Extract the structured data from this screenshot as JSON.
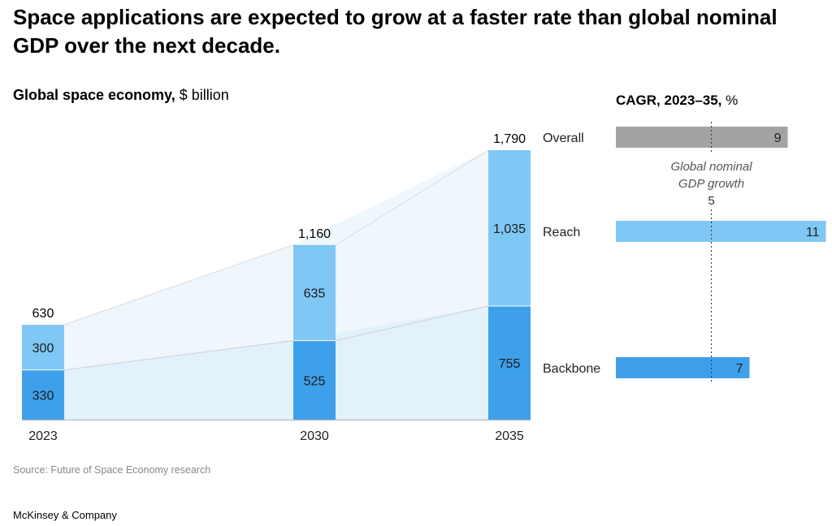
{
  "title": "Space applications are expected to grow at a faster rate than global nominal GDP over the next decade.",
  "chart_title_bold": "Global space economy,",
  "chart_title_unit": " $ billion",
  "cagr_title_bold": "CAGR, 2023–35,",
  "cagr_title_unit": " %",
  "source": "Source: Future of Space Economy research",
  "brand": "McKinsey & Company",
  "colors": {
    "backbone": "#3ea0eb",
    "reach": "#7fc7f4",
    "overall": "#a3a3a3",
    "area_backbone": "#e3f1fb",
    "area_reach": "#eff7fd"
  },
  "chart_data": [
    {
      "type": "bar",
      "stacked": true,
      "categories": [
        "2023",
        "2030",
        "2035"
      ],
      "series": [
        {
          "name": "Backbone",
          "values": [
            330,
            525,
            755
          ],
          "labels": [
            "330",
            "525",
            "755"
          ]
        },
        {
          "name": "Reach",
          "values": [
            300,
            635,
            1035
          ],
          "labels": [
            "300",
            "635",
            "1,035"
          ]
        }
      ],
      "totals": [
        630,
        1160,
        1790
      ],
      "total_labels": [
        "630",
        "1,160",
        "1,790"
      ],
      "title": "Global space economy, $ billion",
      "ylim": [
        0,
        1790
      ]
    },
    {
      "type": "bar",
      "orientation": "horizontal",
      "title": "CAGR, 2023–35, %",
      "categories": [
        "Overall",
        "Reach",
        "Backbone"
      ],
      "values": [
        9,
        11,
        7
      ],
      "labels": [
        "9",
        "11",
        "7"
      ],
      "reference_line": {
        "value": 5,
        "label_lines": [
          "Global nominal",
          "GDP growth"
        ],
        "value_label": "5"
      },
      "xlim": [
        0,
        11
      ]
    }
  ]
}
